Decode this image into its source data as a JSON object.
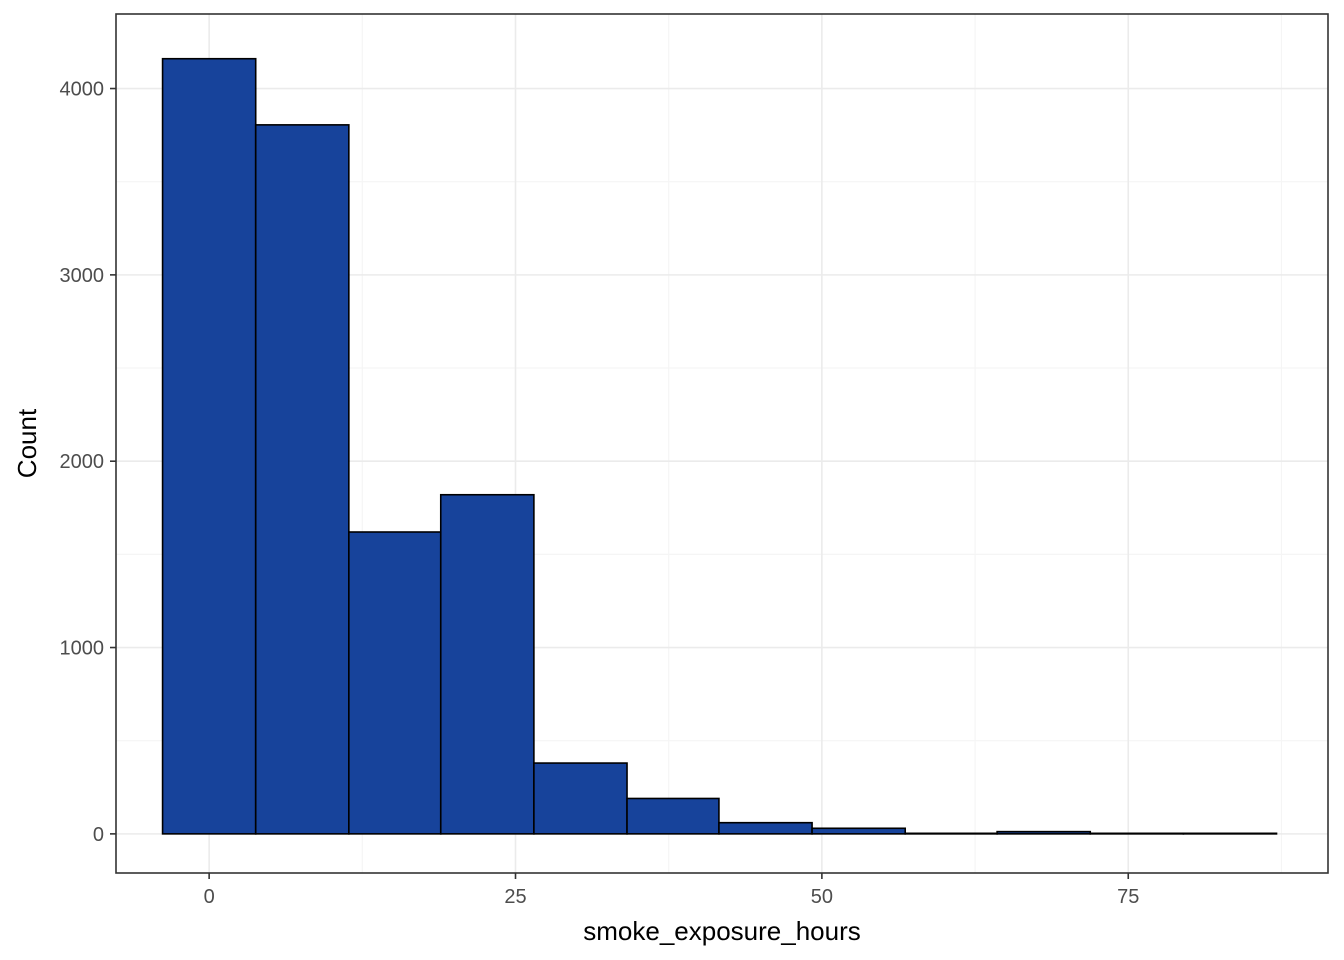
{
  "chart_data": {
    "type": "bar",
    "subtype": "histogram",
    "title": "",
    "xlabel": "smoke_exposure_hours",
    "ylabel": "Count",
    "xlim": [
      -7.6,
      91.3
    ],
    "ylim": [
      -210,
      4400
    ],
    "x_ticks": [
      0,
      25,
      50,
      75
    ],
    "y_ticks": [
      0,
      1000,
      2000,
      3000,
      4000
    ],
    "grid": true,
    "legend": "none",
    "bins": [
      {
        "x0": -3.8,
        "x1": 3.8,
        "count": 4160
      },
      {
        "x0": 3.8,
        "x1": 11.4,
        "count": 3805
      },
      {
        "x0": 11.4,
        "x1": 18.9,
        "count": 1620
      },
      {
        "x0": 18.9,
        "x1": 26.5,
        "count": 1820
      },
      {
        "x0": 26.5,
        "x1": 34.1,
        "count": 380
      },
      {
        "x0": 34.1,
        "x1": 41.6,
        "count": 190
      },
      {
        "x0": 41.6,
        "x1": 49.2,
        "count": 60
      },
      {
        "x0": 49.2,
        "x1": 56.8,
        "count": 30
      },
      {
        "x0": 56.8,
        "x1": 64.3,
        "count": 3
      },
      {
        "x0": 64.3,
        "x1": 71.9,
        "count": 12
      },
      {
        "x0": 71.9,
        "x1": 79.5,
        "count": 3
      },
      {
        "x0": 79.5,
        "x1": 87.1,
        "count": 3
      }
    ],
    "colors": {
      "fill": "#17439b",
      "stroke": "#000000",
      "grid_major": "#ebebeb",
      "grid_minor": "#f5f5f5",
      "panel_border": "#333333"
    }
  }
}
